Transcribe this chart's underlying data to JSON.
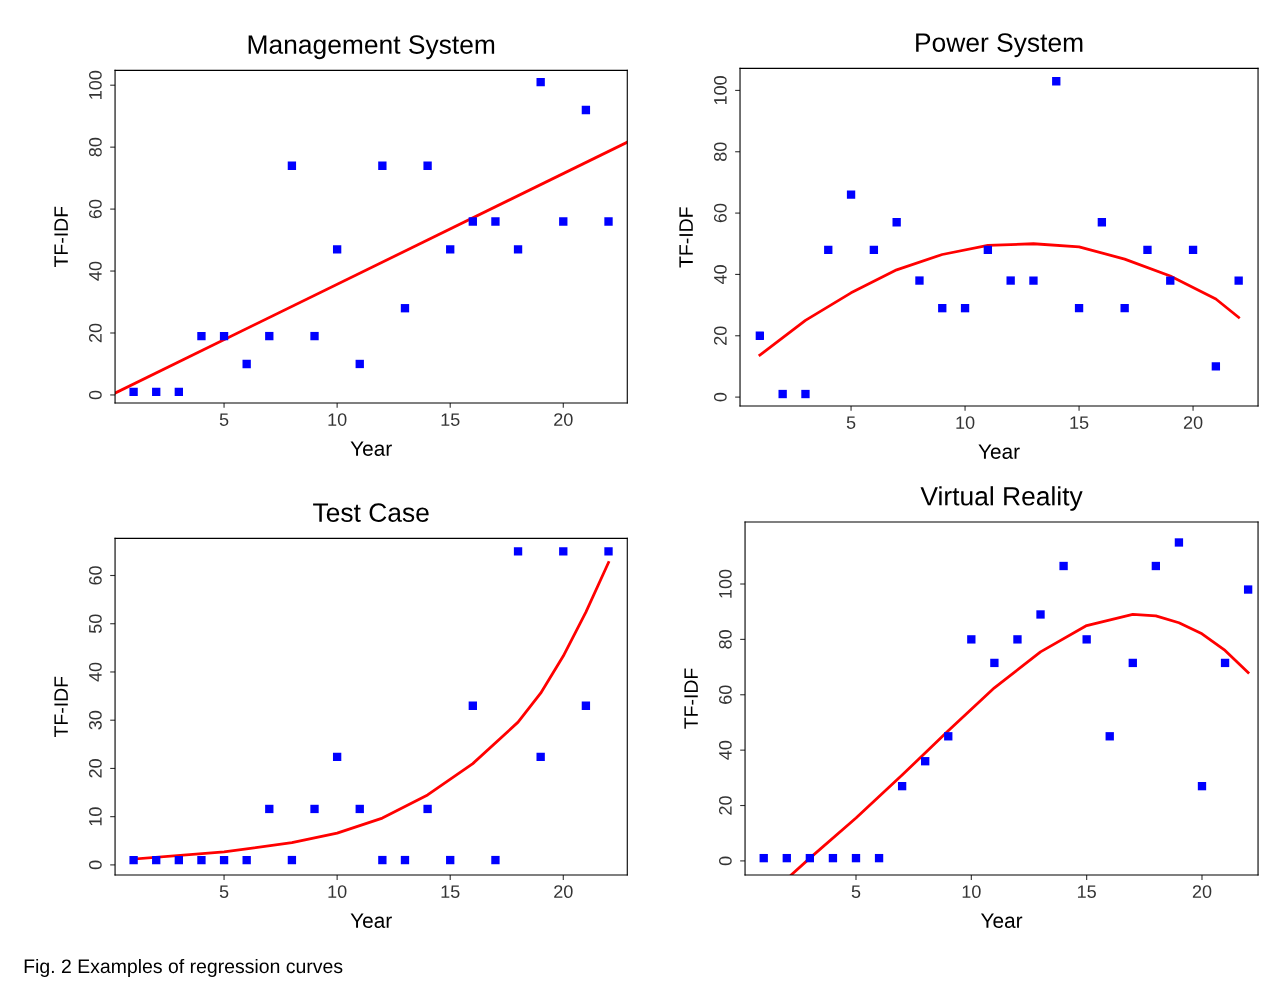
{
  "chart_data": [
    {
      "type": "scatter",
      "title": "Management System",
      "xlabel": "Year",
      "ylabel": "TF-IDF",
      "xlim": [
        0.18,
        22.83
      ],
      "ylim": [
        -2.6,
        104.8
      ],
      "xticks": [
        5,
        10,
        15,
        20
      ],
      "yticks": [
        0,
        20,
        40,
        60,
        80,
        100
      ],
      "grid": false,
      "legend": false,
      "series": [
        {
          "marker": "square",
          "color": "#0000ff",
          "x": [
            1,
            2,
            3,
            4,
            5,
            6,
            7,
            8,
            9,
            10,
            11,
            12,
            13,
            14,
            15,
            16,
            17,
            18,
            19,
            20,
            21,
            22
          ],
          "values": [
            1,
            1,
            1,
            19,
            19,
            10,
            19,
            74,
            19,
            47,
            10,
            74,
            28,
            74,
            47,
            56,
            56,
            47,
            101,
            56,
            92,
            56
          ]
        },
        {
          "type": "line",
          "color": "#ff0000",
          "x": [
            0.18,
            22.83
          ],
          "values": [
            0.6,
            81.6
          ]
        }
      ]
    },
    {
      "type": "scatter",
      "title": "Power System",
      "xlabel": "Year",
      "ylabel": "TF-IDF",
      "xlim": [
        0.13,
        22.85
      ],
      "ylim": [
        -2.9,
        107.2
      ],
      "xticks": [
        5,
        10,
        15,
        20
      ],
      "yticks": [
        0,
        20,
        40,
        60,
        80,
        100
      ],
      "grid": false,
      "legend": false,
      "series": [
        {
          "marker": "square",
          "color": "#0000ff",
          "x": [
            1,
            2,
            3,
            4,
            5,
            6,
            7,
            8,
            9,
            10,
            11,
            12,
            13,
            14,
            15,
            16,
            17,
            18,
            19,
            20,
            21,
            22
          ],
          "values": [
            20,
            1,
            1,
            48,
            66,
            48,
            57,
            38,
            29,
            29,
            48,
            38,
            38,
            103,
            29,
            57,
            29,
            48,
            38,
            48,
            10,
            38
          ]
        },
        {
          "type": "line",
          "color": "#ff0000",
          "x": [
            1,
            3,
            5,
            7,
            9,
            11,
            13,
            15,
            17,
            19,
            21,
            22
          ],
          "values": [
            13.7,
            25,
            34,
            41.5,
            46.5,
            49.5,
            50,
            49,
            45,
            39.5,
            32,
            26
          ]
        }
      ]
    },
    {
      "type": "scatter",
      "title": "Test Case",
      "xlabel": "Year",
      "ylabel": "TF-IDF",
      "xlim": [
        0.18,
        22.83
      ],
      "ylim": [
        -2.1,
        67.7
      ],
      "xticks": [
        5,
        10,
        15,
        20
      ],
      "yticks": [
        0,
        10,
        20,
        30,
        40,
        50,
        60
      ],
      "grid": false,
      "legend": false,
      "series": [
        {
          "marker": "square",
          "color": "#0000ff",
          "x": [
            1,
            2,
            3,
            4,
            5,
            6,
            7,
            8,
            9,
            10,
            11,
            12,
            13,
            14,
            15,
            16,
            17,
            18,
            19,
            20,
            21,
            22
          ],
          "values": [
            1,
            1,
            1,
            1,
            1,
            1,
            11.6,
            1,
            11.6,
            22.4,
            11.6,
            1,
            1,
            11.6,
            1,
            33,
            1,
            65,
            22.4,
            65,
            33,
            65
          ]
        },
        {
          "type": "line",
          "color": "#ff0000",
          "x": [
            1,
            5,
            8,
            10,
            12,
            14,
            16,
            18,
            19,
            20,
            21,
            22
          ],
          "values": [
            1.2,
            2.7,
            4.6,
            6.6,
            9.7,
            14.5,
            21,
            29.6,
            35.6,
            43.3,
            52.4,
            62.7
          ]
        }
      ]
    },
    {
      "type": "scatter",
      "title": "Virtual Reality",
      "xlabel": "Year",
      "ylabel": "TF-IDF",
      "xlim": [
        0.19,
        22.43
      ],
      "ylim": [
        -5.1,
        122.4
      ],
      "xticks": [
        5,
        10,
        15,
        20
      ],
      "yticks": [
        0,
        20,
        40,
        60,
        80,
        100
      ],
      "grid": false,
      "legend": false,
      "annotations": [
        "Fig. 2 Examples of regression curves"
      ],
      "series": [
        {
          "marker": "square",
          "color": "#0000ff",
          "x": [
            1,
            2,
            3,
            4,
            5,
            6,
            7,
            8,
            9,
            10,
            11,
            12,
            13,
            14,
            15,
            16,
            17,
            18,
            19,
            20,
            21,
            22
          ],
          "values": [
            1,
            1,
            1,
            1,
            1,
            1,
            27,
            36,
            45,
            80,
            71.5,
            80,
            89,
            106.5,
            80,
            45,
            71.5,
            106.5,
            115,
            27,
            71.5,
            98
          ]
        },
        {
          "type": "line",
          "color": "#ff0000",
          "x": [
            2.2,
            3,
            5,
            7,
            9,
            11,
            13,
            15,
            17,
            18,
            19,
            20,
            21,
            22
          ],
          "values": [
            -5,
            1,
            15.5,
            31,
            47,
            62.5,
            75.5,
            85,
            89,
            88.5,
            86,
            82,
            76,
            68
          ]
        }
      ]
    }
  ]
}
